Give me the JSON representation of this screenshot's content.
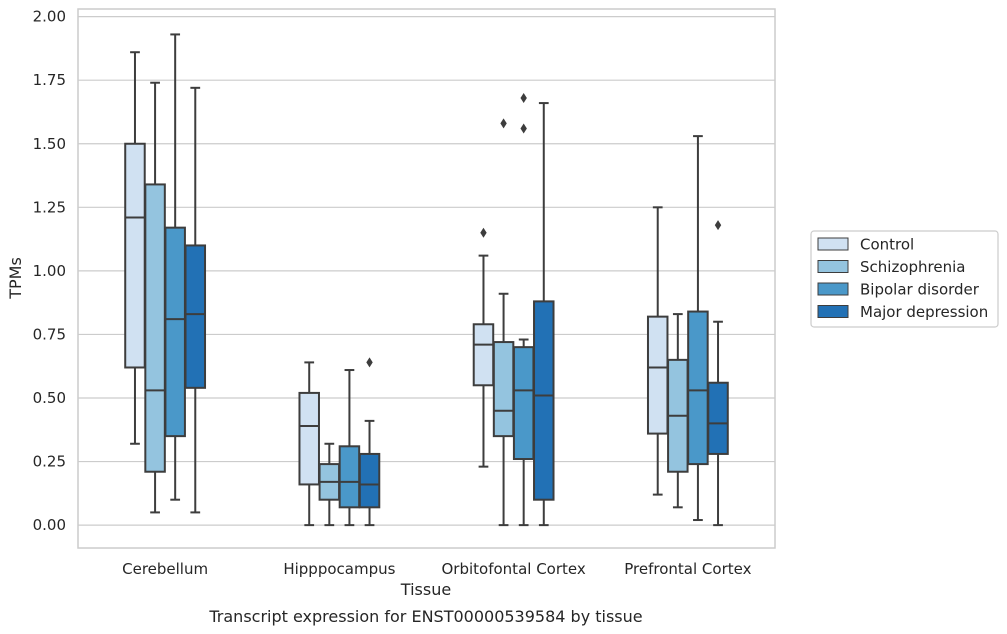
{
  "caption": "Transcript expression for ENST00000539584 by tissue",
  "chart_data": {
    "type": "box",
    "xlabel": "Tissue",
    "ylabel": "TPMs",
    "ylim": [
      -0.09,
      2.03
    ],
    "yticks": [
      "0.00",
      "0.25",
      "0.50",
      "0.75",
      "1.00",
      "1.25",
      "1.50",
      "1.75",
      "2.00"
    ],
    "categories": [
      "Cerebellum",
      "Hipppocampus",
      "Orbitofontal Cortex",
      "Prefrontal Cortex"
    ],
    "grid": "horizontal",
    "legend_position": "right",
    "series": [
      {
        "name": "Control",
        "color": "#d0e1f2",
        "boxes": [
          {
            "whislo": 0.32,
            "q1": 0.62,
            "med": 1.21,
            "q3": 1.5,
            "whishi": 1.86,
            "fliers": []
          },
          {
            "whislo": 0.0,
            "q1": 0.16,
            "med": 0.39,
            "q3": 0.52,
            "whishi": 0.64,
            "fliers": []
          },
          {
            "whislo": 0.23,
            "q1": 0.55,
            "med": 0.71,
            "q3": 0.79,
            "whishi": 1.06,
            "fliers": [
              1.15
            ]
          },
          {
            "whislo": 0.12,
            "q1": 0.36,
            "med": 0.62,
            "q3": 0.82,
            "whishi": 1.25,
            "fliers": []
          }
        ]
      },
      {
        "name": "Schizophrenia",
        "color": "#94c4df",
        "boxes": [
          {
            "whislo": 0.05,
            "q1": 0.21,
            "med": 0.53,
            "q3": 1.34,
            "whishi": 1.74,
            "fliers": []
          },
          {
            "whislo": 0.0,
            "q1": 0.1,
            "med": 0.17,
            "q3": 0.24,
            "whishi": 0.32,
            "fliers": []
          },
          {
            "whislo": 0.0,
            "q1": 0.35,
            "med": 0.45,
            "q3": 0.72,
            "whishi": 0.91,
            "fliers": [
              1.58
            ]
          },
          {
            "whislo": 0.07,
            "q1": 0.21,
            "med": 0.43,
            "q3": 0.65,
            "whishi": 0.83,
            "fliers": []
          }
        ]
      },
      {
        "name": "Bipolar disorder",
        "color": "#4a98c9",
        "boxes": [
          {
            "whislo": 0.1,
            "q1": 0.35,
            "med": 0.81,
            "q3": 1.17,
            "whishi": 1.93,
            "fliers": []
          },
          {
            "whislo": 0.0,
            "q1": 0.07,
            "med": 0.17,
            "q3": 0.31,
            "whishi": 0.61,
            "fliers": []
          },
          {
            "whislo": 0.0,
            "q1": 0.26,
            "med": 0.53,
            "q3": 0.7,
            "whishi": 0.73,
            "fliers": [
              1.56,
              1.68
            ]
          },
          {
            "whislo": 0.02,
            "q1": 0.24,
            "med": 0.53,
            "q3": 0.84,
            "whishi": 1.53,
            "fliers": []
          }
        ]
      },
      {
        "name": "Major depression",
        "color": "#2271b5",
        "boxes": [
          {
            "whislo": 0.05,
            "q1": 0.54,
            "med": 0.83,
            "q3": 1.1,
            "whishi": 1.72,
            "fliers": []
          },
          {
            "whislo": 0.0,
            "q1": 0.07,
            "med": 0.16,
            "q3": 0.28,
            "whishi": 0.41,
            "fliers": [
              0.64
            ]
          },
          {
            "whislo": 0.0,
            "q1": 0.1,
            "med": 0.51,
            "q3": 0.88,
            "whishi": 1.66,
            "fliers": []
          },
          {
            "whislo": 0.0,
            "q1": 0.28,
            "med": 0.4,
            "q3": 0.56,
            "whishi": 0.8,
            "fliers": [
              1.18
            ]
          }
        ]
      }
    ]
  }
}
